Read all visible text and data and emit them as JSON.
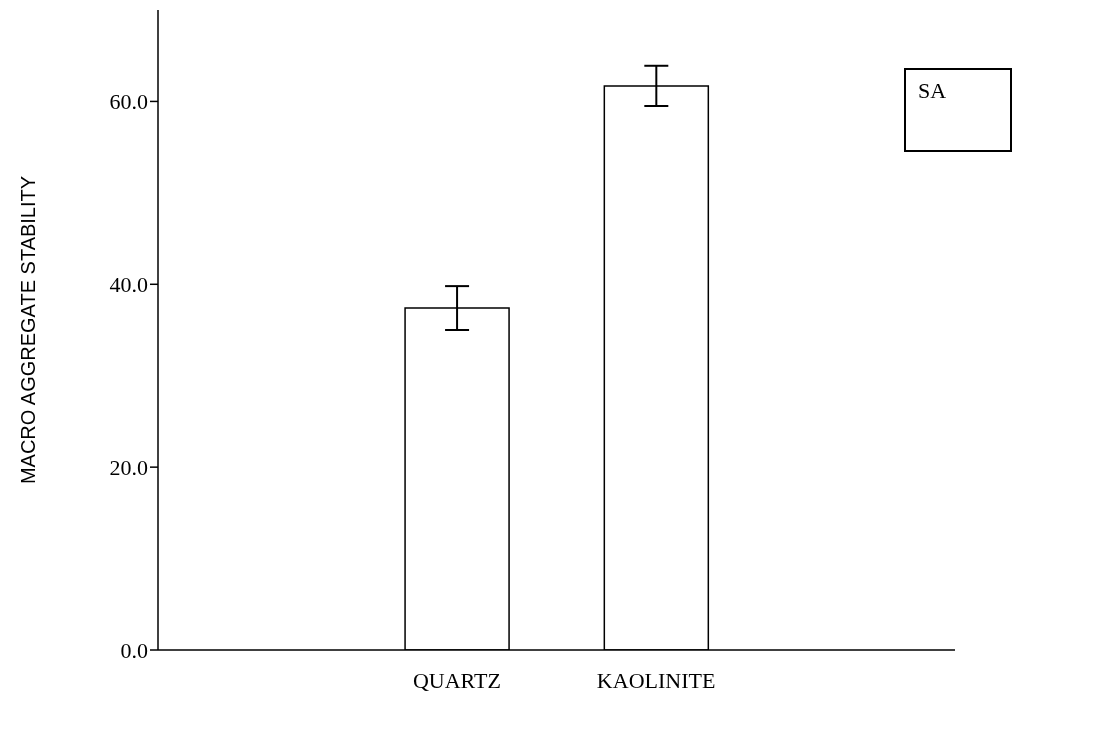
{
  "chart_data": {
    "type": "bar",
    "ylabel": "MACRO AGGREGATE STABILITY",
    "categories": [
      null,
      "QUARTZ",
      "KAOLINITE",
      null
    ],
    "series": [
      {
        "name": "SA",
        "color": "#ffffff",
        "values": [
          null,
          37.4,
          61.7,
          null
        ],
        "errors": [
          null,
          2.4,
          2.2,
          null
        ]
      }
    ],
    "ylim": [
      0,
      70
    ],
    "yticks": [
      {
        "value": 0,
        "label": "0.0"
      },
      {
        "value": 20,
        "label": "20.0"
      },
      {
        "value": 40,
        "label": "40.0"
      },
      {
        "value": 60,
        "label": "60.0"
      }
    ],
    "grid": false,
    "legend": "top right"
  }
}
